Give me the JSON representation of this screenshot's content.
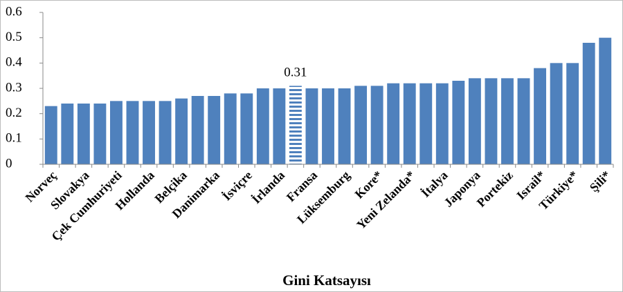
{
  "chart_data": {
    "type": "bar",
    "x_label": "Gini Katsayısı",
    "categories": [
      "Norveç",
      null,
      "Slovakya",
      null,
      "Çek Cumhuriyeti",
      null,
      "Hollanda",
      null,
      "Belçika",
      null,
      "Danimarka",
      null,
      "İsviçre",
      null,
      "İrlanda",
      null,
      "Fransa",
      null,
      "Lüksemburg",
      null,
      "Kore*",
      null,
      "Yeni Zelanda*",
      null,
      "İtalya",
      null,
      "Japonya",
      null,
      "Portekiz",
      null,
      "Israil*",
      null,
      "Türkiye*",
      null,
      "Şili*"
    ],
    "values": [
      0.23,
      0.24,
      0.24,
      0.24,
      0.25,
      0.25,
      0.25,
      0.25,
      0.26,
      0.27,
      0.27,
      0.28,
      0.28,
      0.3,
      0.3,
      0.31,
      0.3,
      0.3,
      0.3,
      0.31,
      0.31,
      0.32,
      0.32,
      0.32,
      0.32,
      0.33,
      0.34,
      0.34,
      0.34,
      0.34,
      0.38,
      0.4,
      0.4,
      0.48,
      0.5
    ],
    "color": "#4f81bd",
    "highlight": 15,
    "ylim": [
      0,
      0.6
    ],
    "yticks": [
      0,
      0.1,
      0.2,
      0.3,
      0.4,
      0.5,
      0.6
    ],
    "grid": false
  }
}
